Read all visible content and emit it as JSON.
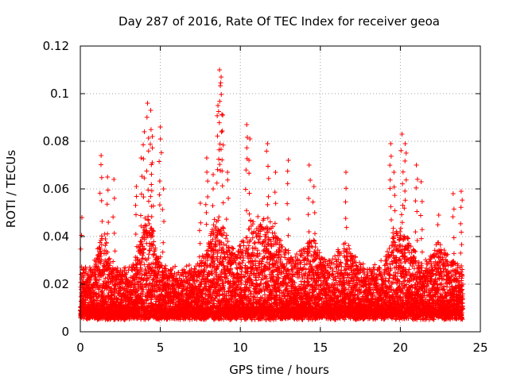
{
  "chart_data": {
    "type": "scatter",
    "title": "Day 287 of 2016, Rate Of TEC Index for receiver geoa",
    "xlabel": "GPS time / hours",
    "ylabel": "ROTI / TECUs",
    "xlim": [
      0,
      25
    ],
    "ylim": [
      0,
      0.12
    ],
    "grid": true,
    "marker": "+",
    "series": [
      {
        "name": "ROTI",
        "color": "#ff0000",
        "x_range": [
          0,
          23.9
        ],
        "sample_interval_hours": 0.0083,
        "baseline_min": 0.005,
        "notable_points": [
          {
            "x": 0.1,
            "y": 0.048
          },
          {
            "x": 1.3,
            "y": 0.074
          },
          {
            "x": 1.7,
            "y": 0.065
          },
          {
            "x": 2.1,
            "y": 0.064
          },
          {
            "x": 3.5,
            "y": 0.061
          },
          {
            "x": 3.8,
            "y": 0.073
          },
          {
            "x": 4.0,
            "y": 0.084
          },
          {
            "x": 4.2,
            "y": 0.096
          },
          {
            "x": 4.4,
            "y": 0.093
          },
          {
            "x": 4.5,
            "y": 0.082
          },
          {
            "x": 5.0,
            "y": 0.086
          },
          {
            "x": 5.2,
            "y": 0.06
          },
          {
            "x": 7.5,
            "y": 0.054
          },
          {
            "x": 7.9,
            "y": 0.073
          },
          {
            "x": 8.3,
            "y": 0.066
          },
          {
            "x": 8.6,
            "y": 0.095
          },
          {
            "x": 8.7,
            "y": 0.11
          },
          {
            "x": 8.8,
            "y": 0.107
          },
          {
            "x": 8.9,
            "y": 0.091
          },
          {
            "x": 9.2,
            "y": 0.067
          },
          {
            "x": 10.4,
            "y": 0.087
          },
          {
            "x": 10.6,
            "y": 0.081
          },
          {
            "x": 11.7,
            "y": 0.079
          },
          {
            "x": 12.2,
            "y": 0.067
          },
          {
            "x": 13.0,
            "y": 0.072
          },
          {
            "x": 14.3,
            "y": 0.07
          },
          {
            "x": 14.6,
            "y": 0.061
          },
          {
            "x": 16.6,
            "y": 0.067
          },
          {
            "x": 19.4,
            "y": 0.079
          },
          {
            "x": 19.6,
            "y": 0.067
          },
          {
            "x": 20.1,
            "y": 0.083
          },
          {
            "x": 20.3,
            "y": 0.079
          },
          {
            "x": 21.0,
            "y": 0.07
          },
          {
            "x": 21.3,
            "y": 0.063
          },
          {
            "x": 22.4,
            "y": 0.049
          },
          {
            "x": 23.3,
            "y": 0.058
          },
          {
            "x": 23.8,
            "y": 0.059
          }
        ]
      }
    ],
    "xticks": [
      {
        "value": 0,
        "label": "0"
      },
      {
        "value": 5,
        "label": "5"
      },
      {
        "value": 10,
        "label": "10"
      },
      {
        "value": 15,
        "label": "15"
      },
      {
        "value": 20,
        "label": "20"
      },
      {
        "value": 25,
        "label": "25"
      }
    ],
    "yticks": [
      {
        "value": 0,
        "label": "0"
      },
      {
        "value": 0.02,
        "label": "0.02"
      },
      {
        "value": 0.04,
        "label": "0.04"
      },
      {
        "value": 0.06,
        "label": "0.06"
      },
      {
        "value": 0.08,
        "label": "0.08"
      },
      {
        "value": 0.1,
        "label": "0.1"
      },
      {
        "value": 0.12,
        "label": "0.12"
      }
    ]
  }
}
